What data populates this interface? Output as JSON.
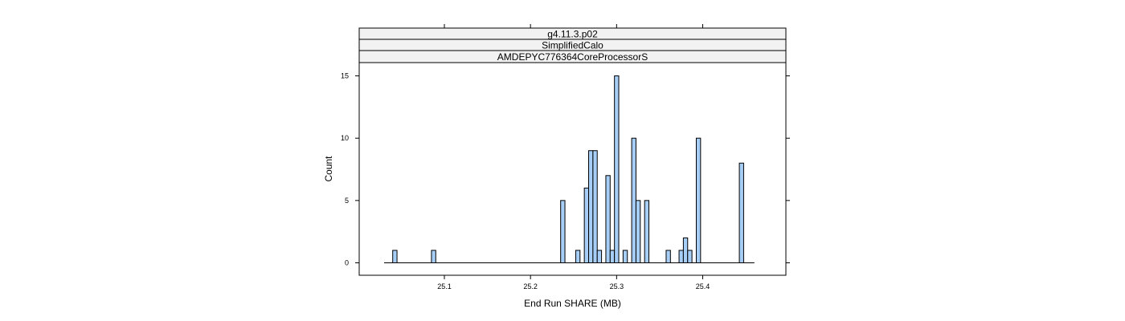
{
  "chart_data": {
    "type": "bar",
    "strips": [
      "g4.11.3.p02",
      "SimplifiedCalo",
      "AMDEPYC776364CoreProcessorS"
    ],
    "xlabel": "End Run SHARE (MB)",
    "ylabel": "Count",
    "xlim": [
      25.03,
      25.47
    ],
    "ylim": [
      -1,
      15
    ],
    "x_ticks": [
      25.1,
      25.2,
      25.3,
      25.4
    ],
    "x_tick_labels": [
      "25.1",
      "25.2",
      "25.3",
      "25.4"
    ],
    "y_ticks": [
      0,
      5,
      10,
      15
    ],
    "y_tick_labels": [
      "0",
      "5",
      "10",
      "15"
    ],
    "bin_width": 0.005,
    "baseline_range": [
      25.03,
      25.46
    ],
    "bars": [
      {
        "x": 25.0425,
        "count": 1
      },
      {
        "x": 25.0875,
        "count": 1
      },
      {
        "x": 25.2375,
        "count": 5
      },
      {
        "x": 25.255,
        "count": 1
      },
      {
        "x": 25.265,
        "count": 6
      },
      {
        "x": 25.27,
        "count": 9
      },
      {
        "x": 25.275,
        "count": 9
      },
      {
        "x": 25.28,
        "count": 1
      },
      {
        "x": 25.29,
        "count": 7
      },
      {
        "x": 25.295,
        "count": 1
      },
      {
        "x": 25.3,
        "count": 15
      },
      {
        "x": 25.31,
        "count": 1
      },
      {
        "x": 25.32,
        "count": 10
      },
      {
        "x": 25.325,
        "count": 5
      },
      {
        "x": 25.335,
        "count": 5
      },
      {
        "x": 25.36,
        "count": 1
      },
      {
        "x": 25.375,
        "count": 1
      },
      {
        "x": 25.38,
        "count": 2
      },
      {
        "x": 25.385,
        "count": 1
      },
      {
        "x": 25.395,
        "count": 10
      },
      {
        "x": 25.445,
        "count": 8
      }
    ],
    "colors": {
      "bar_fill": "#a6cef7",
      "bar_stroke": "#000000",
      "strip_fill": "#f2f2f2"
    },
    "grid": false,
    "legend": "none"
  }
}
